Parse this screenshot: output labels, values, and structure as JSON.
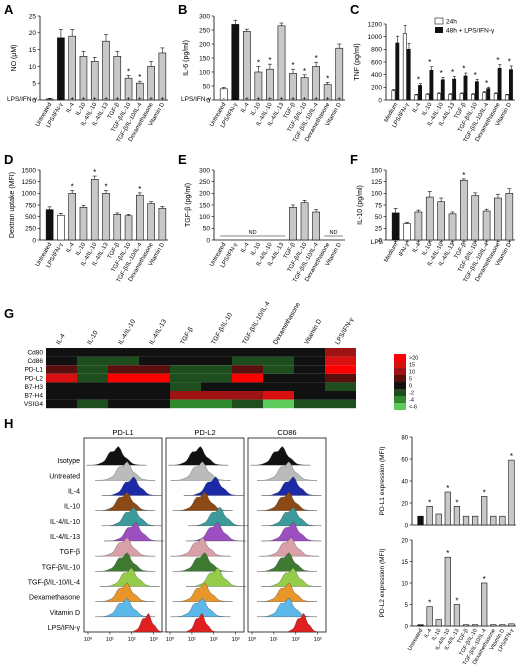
{
  "panel_letters": [
    "A",
    "B",
    "C",
    "D",
    "E",
    "F",
    "G",
    "H"
  ],
  "colors": {
    "black": "#111111",
    "white": "#ffffff",
    "bar_grey": "#c8c8c8",
    "axis": "#000000"
  },
  "chart_data": [
    {
      "id": "A",
      "type": "bar",
      "ylabel": "NO (μM)",
      "ylim": [
        0,
        25
      ],
      "yticks": [
        0,
        5,
        10,
        15,
        20,
        25
      ],
      "categories": [
        "Untreated",
        "LPS/IFN-γ",
        "IL-4",
        "IL-10",
        "IL-4/IL-10",
        "IL-4/IL-13",
        "TGF-β",
        "TGF-β/IL-10",
        "TGF-β/IL-10/IL-4",
        "Dexamethasone",
        "Vitamin D"
      ],
      "values": [
        0.3,
        18.5,
        19,
        13,
        11.5,
        17.5,
        13,
        6.5,
        5,
        10,
        14
      ],
      "errors": [
        0.2,
        2.5,
        2,
        1.5,
        1.2,
        2,
        1.5,
        0.8,
        0.6,
        1.5,
        1.5
      ],
      "bar_fill": [
        "grey",
        "black",
        "grey",
        "grey",
        "grey",
        "grey",
        "grey",
        "grey",
        "grey",
        "grey",
        "grey"
      ],
      "significant": [
        false,
        false,
        false,
        false,
        false,
        false,
        false,
        true,
        true,
        false,
        false
      ],
      "treatment_label": "LPS/IFN-γ",
      "treatment_signs": [
        "-",
        "+",
        "+",
        "+",
        "+",
        "+",
        "+",
        "+",
        "+",
        "+",
        "+"
      ]
    },
    {
      "id": "B",
      "type": "bar",
      "ylabel": "IL-6 (pg/ml)",
      "ylim": [
        0,
        300
      ],
      "yticks": [
        0,
        50,
        100,
        150,
        200,
        250,
        300
      ],
      "categories": [
        "Untreated",
        "LPS/IFN-γ",
        "IL-4",
        "IL-10",
        "IL-4/IL-10",
        "IL-4/IL-13",
        "TGF-β",
        "TGF-β/IL-10",
        "TGF-β/IL-10/IL-4",
        "Dexamethasone",
        "Vitamin D"
      ],
      "values": [
        40,
        270,
        245,
        100,
        110,
        265,
        95,
        80,
        120,
        55,
        185
      ],
      "errors": [
        5,
        15,
        8,
        20,
        18,
        10,
        15,
        10,
        15,
        8,
        15
      ],
      "bar_fill": [
        "white",
        "black",
        "grey",
        "grey",
        "grey",
        "grey",
        "grey",
        "grey",
        "grey",
        "grey",
        "grey"
      ],
      "significant": [
        false,
        false,
        false,
        true,
        true,
        false,
        true,
        true,
        true,
        true,
        false
      ],
      "treatment_label": "LPS/IFN-γ",
      "treatment_signs": [
        "-",
        "+",
        "+",
        "+",
        "+",
        "+",
        "+",
        "+",
        "+",
        "+",
        "+"
      ]
    },
    {
      "id": "C",
      "type": "bar",
      "ylabel": "TNF (pg/ml)",
      "ylim": [
        0,
        1200
      ],
      "yticks": [
        0,
        200,
        400,
        600,
        800,
        1000,
        1200
      ],
      "legend": [
        "24h",
        "48h + LPS/IFN-γ"
      ],
      "categories": [
        "Medium",
        "LPS/IFN-γ",
        "IL-4",
        "IL-10",
        "IL-4/IL-10",
        "IL-4/IL-13",
        "TGF-β",
        "TGF-β/IL-10",
        "TGF-β/IL-10/IL-4",
        "Dexamethasone",
        "Vitamin D"
      ],
      "series": [
        {
          "name": "24h",
          "values": [
            150,
            1050,
            80,
            90,
            100,
            90,
            100,
            90,
            120,
            100,
            80
          ]
        },
        {
          "name": "48h + LPS/IFN-γ",
          "values": [
            900,
            800,
            230,
            470,
            320,
            330,
            380,
            290,
            180,
            500,
            480
          ]
        }
      ],
      "significant": [
        false,
        false,
        true,
        true,
        true,
        true,
        true,
        true,
        true,
        true,
        true
      ]
    },
    {
      "id": "D",
      "type": "bar",
      "ylabel": "Dextran uptake (MFI)",
      "ylim": [
        0,
        1500
      ],
      "yticks": [
        0,
        250,
        500,
        750,
        1000,
        1250,
        1500
      ],
      "categories": [
        "Untreated",
        "LPS/IFN-γ",
        "IL-4",
        "IL-10",
        "IL-4/IL-10",
        "IL-4/IL-13",
        "TGF-β",
        "TGF-β/IL-10",
        "TGF-β/IL-10/IL-4",
        "Dexamethasone",
        "Vitamin D"
      ],
      "values": [
        650,
        530,
        1000,
        700,
        1300,
        1000,
        550,
        520,
        960,
        780,
        680
      ],
      "errors": [
        60,
        40,
        60,
        40,
        70,
        60,
        30,
        30,
        50,
        40,
        40
      ],
      "bar_fill": [
        "black",
        "white",
        "grey",
        "grey",
        "grey",
        "grey",
        "grey",
        "grey",
        "grey",
        "grey",
        "grey"
      ],
      "significant": [
        false,
        false,
        true,
        false,
        true,
        true,
        false,
        false,
        true,
        false,
        false
      ]
    },
    {
      "id": "E",
      "type": "bar",
      "ylabel": "TGF-β (pg/ml)",
      "ylim": [
        0,
        300
      ],
      "yticks": [
        0,
        50,
        100,
        150,
        200,
        250,
        300
      ],
      "categories": [
        "Untreated",
        "LPS/IFN-γ",
        "IL-4",
        "IL-10",
        "IL-4/IL-10",
        "IL-4/IL-13",
        "TGF-β",
        "TGF-β/IL-10",
        "TGF-β/IL-10/IL-4",
        "Dexamethasone",
        "Vitamin D"
      ],
      "values": [
        0,
        0,
        0,
        0,
        0,
        0,
        140,
        160,
        120,
        0,
        0
      ],
      "errors": [
        0,
        0,
        0,
        0,
        0,
        0,
        10,
        10,
        10,
        0,
        0
      ],
      "bar_fill": [
        "white",
        "black",
        "grey",
        "grey",
        "grey",
        "grey",
        "grey",
        "grey",
        "grey",
        "grey",
        "grey"
      ],
      "annotations": [
        "ND",
        "ND"
      ]
    },
    {
      "id": "F",
      "type": "bar",
      "ylabel": "IL-10 (pg/ml)",
      "ylim": [
        0,
        150
      ],
      "yticks": [
        0,
        25,
        50,
        75,
        100,
        125,
        150
      ],
      "categories": [
        "Medium",
        "IFN-γ",
        "IL-4",
        "IL-10",
        "IL-4/IL-10",
        "IL-4/IL-13",
        "TGF-β",
        "TGF-β/IL-10",
        "TGF-β/IL-10/IL-4",
        "Dexamethasone",
        "Vitamin D"
      ],
      "values": [
        58,
        35,
        60,
        92,
        82,
        56,
        128,
        95,
        62,
        90,
        100
      ],
      "errors": [
        10,
        3,
        4,
        12,
        8,
        4,
        3,
        6,
        4,
        8,
        10
      ],
      "bar_fill": [
        "black",
        "white",
        "grey",
        "grey",
        "grey",
        "grey",
        "grey",
        "grey",
        "grey",
        "grey",
        "grey"
      ],
      "significant": [
        false,
        false,
        false,
        false,
        false,
        false,
        true,
        false,
        false,
        false,
        false
      ],
      "treatment_label": "LPS",
      "treatment_signs": [
        "+",
        "+",
        "+",
        "+",
        "+",
        "+",
        "+",
        "+",
        "+",
        "+",
        "+"
      ]
    },
    {
      "id": "G",
      "type": "heatmap",
      "columns": [
        "IL-4",
        "IL-10",
        "IL-4/IL-10",
        "IL-4/IL-13",
        "TGF-β",
        "TGF-β/IL-10",
        "TGF-β/IL-10/IL-4",
        "Dexamethasone",
        "Vitamin D",
        "LPS/IFN-γ"
      ],
      "rows": [
        "Cd80",
        "Cd86",
        "PD-L1",
        "PD-L2",
        "B7-H3",
        "B7-H4",
        "VSIG4"
      ],
      "values": [
        [
          0,
          0,
          0,
          0,
          0,
          0,
          0,
          0,
          0,
          10
        ],
        [
          0,
          -2,
          -2,
          0,
          0,
          0,
          -2,
          -2,
          0,
          15
        ],
        [
          5,
          -2,
          5,
          5,
          -2,
          -2,
          5,
          -2,
          0,
          20
        ],
        [
          15,
          -2,
          20,
          20,
          -2,
          -2,
          20,
          0,
          0,
          5
        ],
        [
          0,
          0,
          0,
          0,
          -2,
          0,
          0,
          0,
          0,
          -2
        ],
        [
          0,
          0,
          0,
          0,
          10,
          10,
          10,
          15,
          0,
          0
        ],
        [
          0,
          -2,
          0,
          0,
          -4,
          -4,
          -2,
          -6,
          -2,
          -2
        ]
      ],
      "scale_labels": [
        ">20",
        "15",
        "10",
        "5",
        "0",
        "-2",
        "-4",
        "<-6"
      ],
      "scale_colors": [
        "#ff0000",
        "#d91010",
        "#9e1313",
        "#5a0f0f",
        "#111111",
        "#1e4d1e",
        "#2f8a2f",
        "#5dcc5d"
      ]
    },
    {
      "id": "H",
      "type": "histogram",
      "panels": [
        "PD-L1",
        "PD-L2",
        "CD86"
      ],
      "rows": [
        "Isotype",
        "Untreated",
        "IL-4",
        "IL-10",
        "IL-4/IL-10",
        "IL-4/IL-13",
        "TGF-β",
        "TGF-β/IL-10",
        "TGF-β/IL-10/IL-4",
        "Dexamethasone",
        "Vitamin D",
        "LPS/IFN-γ"
      ],
      "row_colors": [
        "#111111",
        "#bbbbbb",
        "#1c2aa8",
        "#8b4a15",
        "#3c9a9a",
        "#9c4fc0",
        "#d9a0a8",
        "#3f7a32",
        "#95cc4a",
        "#e8952a",
        "#5bb8e8",
        "#e02020"
      ],
      "xticks": [
        "10⁰",
        "10¹",
        "10²",
        "10³"
      ],
      "peaks": {
        "PD-L1": [
          1.3,
          1.7,
          2.0,
          1.7,
          2.0,
          2.1,
          1.7,
          1.7,
          1.9,
          1.7,
          1.7,
          2.7
        ],
        "PD-L2": [
          1.3,
          1.4,
          2.0,
          1.5,
          2.2,
          2.1,
          1.4,
          1.5,
          2.1,
          1.5,
          1.4,
          1.4
        ],
        "CD86": [
          1.3,
          1.6,
          1.8,
          1.6,
          1.8,
          1.8,
          1.7,
          1.6,
          1.8,
          1.6,
          1.6,
          2.3
        ]
      }
    },
    {
      "id": "H1",
      "type": "bar",
      "ylabel": "PD-L1 expression (MFI)",
      "ylim": [
        0,
        80
      ],
      "yticks": [
        0,
        20,
        40,
        60,
        80
      ],
      "categories": [
        "Untreated",
        "IL-4",
        "IL-10",
        "IL-4/IL-10",
        "IL-4/IL-13",
        "TGF-β",
        "TGF-β/IL-10",
        "TGF-β/IL-10/IL-4",
        "Dexamethasone",
        "Vitamin D",
        "LPS/IFN-γ"
      ],
      "values": [
        8,
        17,
        10,
        30,
        17,
        8,
        8,
        26,
        8,
        8,
        59
      ],
      "bar_fill": [
        "black",
        "grey",
        "grey",
        "grey",
        "grey",
        "grey",
        "grey",
        "grey",
        "grey",
        "grey",
        "grey"
      ],
      "significant": [
        false,
        true,
        false,
        true,
        true,
        false,
        false,
        true,
        false,
        false,
        true
      ]
    },
    {
      "id": "H2",
      "type": "bar",
      "ylabel": "PD-L2 expression (MFI)",
      "ylim": [
        0,
        20
      ],
      "yticks": [
        0,
        5,
        10,
        15,
        20
      ],
      "categories": [
        "Untreated",
        "IL-4",
        "IL-10",
        "IL-4/IL-10",
        "IL-4/IL-13",
        "TGF-β",
        "TGF-β/IL-10",
        "TGF-β/IL-10/IL-4",
        "Dexamethasone",
        "Vitamin D",
        "LPS/IFN-γ"
      ],
      "values": [
        0.3,
        4.5,
        1.5,
        16,
        5,
        0.3,
        0.3,
        10,
        0.3,
        0.3,
        0.5
      ],
      "bar_fill": [
        "black",
        "grey",
        "grey",
        "grey",
        "grey",
        "grey",
        "grey",
        "grey",
        "grey",
        "grey",
        "grey"
      ],
      "significant": [
        false,
        true,
        false,
        true,
        true,
        false,
        false,
        true,
        false,
        false,
        false
      ]
    }
  ]
}
